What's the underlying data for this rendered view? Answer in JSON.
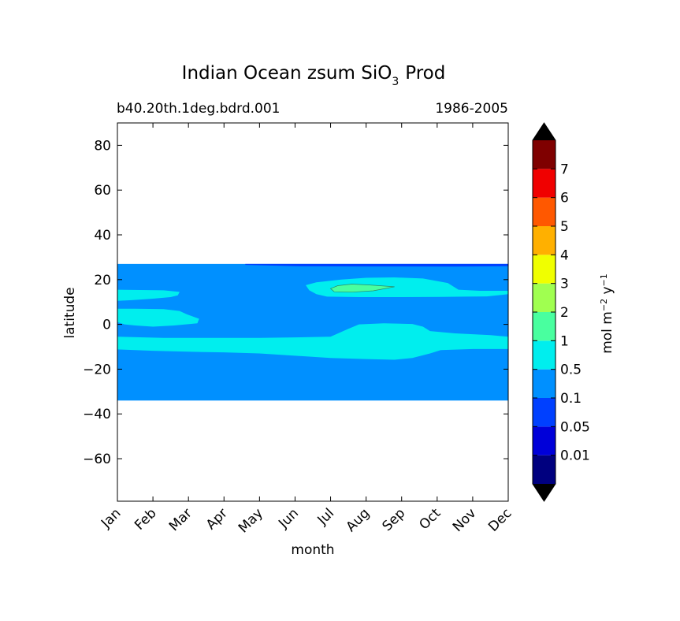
{
  "chart_data": {
    "type": "contour",
    "title": "Indian Ocean zsum SiO",
    "title_subscript": "3",
    "title_suffix": "Prod",
    "subtitle_left": "b40.20th.1deg.bdrd.001",
    "subtitle_right": "1986-2005",
    "xlabel": "month",
    "ylabel": "latitude",
    "x_ticks": [
      "Jan",
      "Feb",
      "Mar",
      "Apr",
      "May",
      "Jun",
      "Jul",
      "Aug",
      "Sep",
      "Oct",
      "Nov",
      "Dec"
    ],
    "y_ticks": [
      80,
      60,
      40,
      20,
      0,
      -20,
      -40,
      -60
    ],
    "y_tick_labels": [
      "80",
      "60",
      "40",
      "20",
      "0",
      "−20",
      "−40",
      "−60"
    ],
    "xlim": [
      0,
      11
    ],
    "ylim": [
      -79,
      90
    ],
    "colorbar": {
      "label": "mol m",
      "label_sup1": "−2",
      "label_mid": " y",
      "label_sup2": "−1",
      "levels": [
        "0.01",
        "0.05",
        "0.1",
        "0.5",
        "1",
        "2",
        "3",
        "4",
        "5",
        "6",
        "7"
      ],
      "colors": [
        "#00007f",
        "#0000d9",
        "#0040ff",
        "#0090ff",
        "#00eeee",
        "#49ff9f",
        "#a0ff50",
        "#f0ff00",
        "#ffb000",
        "#ff5800",
        "#f00000",
        "#7f0000"
      ],
      "under_color": "#000000",
      "over_color": "#000000"
    },
    "data_extent": {
      "lat_min": -34,
      "lat_max": 27
    },
    "regions": [
      {
        "name": "background",
        "level_index": 3,
        "points": [
          [
            0,
            27
          ],
          [
            11,
            27
          ],
          [
            11,
            -34
          ],
          [
            0,
            -34
          ]
        ]
      },
      {
        "name": "northern-edge-strip",
        "level_index": 2,
        "points": [
          [
            3.6,
            27
          ],
          [
            11,
            27
          ],
          [
            11,
            26
          ],
          [
            9.5,
            25.8
          ],
          [
            7,
            25.9
          ],
          [
            5,
            26
          ],
          [
            3.6,
            26.6
          ]
        ]
      },
      {
        "name": "arabian-sea-patch",
        "level_index": 4,
        "points": [
          [
            0,
            15.5
          ],
          [
            1.3,
            15.2
          ],
          [
            1.75,
            14.5
          ],
          [
            1.7,
            13
          ],
          [
            1.5,
            12.2
          ],
          [
            1,
            11.5
          ],
          [
            0.4,
            10.8
          ],
          [
            0,
            10.5
          ]
        ]
      },
      {
        "name": "north-equatorial-patch",
        "level_index": 4,
        "points": [
          [
            0,
            7
          ],
          [
            0.5,
            7
          ],
          [
            1.3,
            6.8
          ],
          [
            1.75,
            6
          ],
          [
            1.95,
            4.5
          ],
          [
            2.3,
            2.5
          ],
          [
            2.25,
            0.5
          ],
          [
            1.6,
            -0.5
          ],
          [
            1,
            -1
          ],
          [
            0.5,
            -0.5
          ],
          [
            0.2,
            0
          ],
          [
            0,
            1
          ]
        ]
      },
      {
        "name": "bay-of-bengal-patch",
        "level_index": 4,
        "points": [
          [
            5.3,
            17.5
          ],
          [
            5.6,
            18.8
          ],
          [
            6.3,
            20
          ],
          [
            7,
            20.8
          ],
          [
            7.8,
            21
          ],
          [
            8.6,
            20.5
          ],
          [
            9.3,
            18.5
          ],
          [
            9.6,
            15.5
          ],
          [
            10.2,
            15
          ],
          [
            11,
            15
          ],
          [
            11,
            13.5
          ],
          [
            10.4,
            12.5
          ],
          [
            9.8,
            12.4
          ],
          [
            9.1,
            12.3
          ],
          [
            8,
            12.2
          ],
          [
            6.8,
            12.2
          ],
          [
            5.9,
            12.4
          ],
          [
            5.6,
            13.5
          ],
          [
            5.4,
            15.2
          ]
        ]
      },
      {
        "name": "bay-of-bengal-core",
        "level_index": 5,
        "points": [
          [
            6.2,
            17.3
          ],
          [
            6.6,
            18
          ],
          [
            7.1,
            17.6
          ],
          [
            7.8,
            16.8
          ],
          [
            7.2,
            15
          ],
          [
            6.6,
            14.4
          ],
          [
            6.1,
            14.6
          ],
          [
            6,
            16
          ]
        ]
      },
      {
        "name": "southern-equatorial-band",
        "level_index": 4,
        "points": [
          [
            0,
            -5.5
          ],
          [
            1.3,
            -6
          ],
          [
            2.5,
            -6
          ],
          [
            4,
            -6
          ],
          [
            5,
            -5.8
          ],
          [
            6,
            -5.5
          ],
          [
            6.5,
            -2
          ],
          [
            6.8,
            0
          ],
          [
            7.5,
            0.5
          ],
          [
            8.3,
            0.2
          ],
          [
            8.6,
            -1
          ],
          [
            8.8,
            -3
          ],
          [
            9.5,
            -4
          ],
          [
            10.5,
            -4.8
          ],
          [
            11,
            -5.5
          ],
          [
            11,
            -11
          ],
          [
            10,
            -11
          ],
          [
            9.1,
            -11.5
          ],
          [
            8.8,
            -13
          ],
          [
            8.3,
            -15
          ],
          [
            7.8,
            -15.8
          ],
          [
            7,
            -15.5
          ],
          [
            6,
            -15
          ],
          [
            5,
            -14
          ],
          [
            4,
            -13
          ],
          [
            3,
            -12.5
          ],
          [
            2,
            -12.2
          ],
          [
            1,
            -11.8
          ],
          [
            0,
            -11.2
          ]
        ]
      }
    ]
  }
}
